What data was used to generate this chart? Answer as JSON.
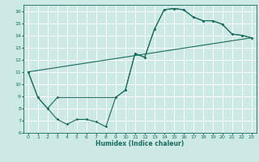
{
  "title": "",
  "xlabel": "Humidex (Indice chaleur)",
  "ylabel": "",
  "background_color": "#cce9e5",
  "line_color": "#1a6b5e",
  "grid_color": "#ffffff",
  "xlim": [
    -0.5,
    23.5
  ],
  "ylim": [
    6,
    16.5
  ],
  "xticks": [
    0,
    1,
    2,
    3,
    4,
    5,
    6,
    7,
    8,
    9,
    10,
    11,
    12,
    13,
    14,
    15,
    16,
    17,
    18,
    19,
    20,
    21,
    22,
    23
  ],
  "yticks": [
    6,
    7,
    8,
    9,
    10,
    11,
    12,
    13,
    14,
    15,
    16
  ],
  "line1_x": [
    0,
    1,
    2,
    3,
    4,
    5,
    6,
    7,
    8,
    9,
    10,
    11,
    12,
    13,
    14,
    15,
    16,
    17,
    18,
    19,
    20,
    21,
    22,
    23
  ],
  "line1_y": [
    11.0,
    8.9,
    8.0,
    7.1,
    6.7,
    7.1,
    7.1,
    6.9,
    6.5,
    8.9,
    9.5,
    12.5,
    12.2,
    14.5,
    16.1,
    16.2,
    16.1,
    15.5,
    15.2,
    15.2,
    14.9,
    14.1,
    14.0,
    13.8
  ],
  "line2_x": [
    0,
    1,
    2,
    3,
    9,
    10,
    11,
    12,
    13,
    14,
    15,
    16,
    17,
    18,
    19,
    20,
    21,
    22,
    23
  ],
  "line2_y": [
    11.0,
    8.9,
    8.0,
    8.9,
    8.9,
    9.5,
    12.5,
    12.2,
    14.5,
    16.1,
    16.2,
    16.1,
    15.5,
    15.2,
    15.2,
    14.9,
    14.1,
    14.0,
    13.8
  ],
  "line3_x": [
    0,
    23
  ],
  "line3_y": [
    11.0,
    13.8
  ]
}
